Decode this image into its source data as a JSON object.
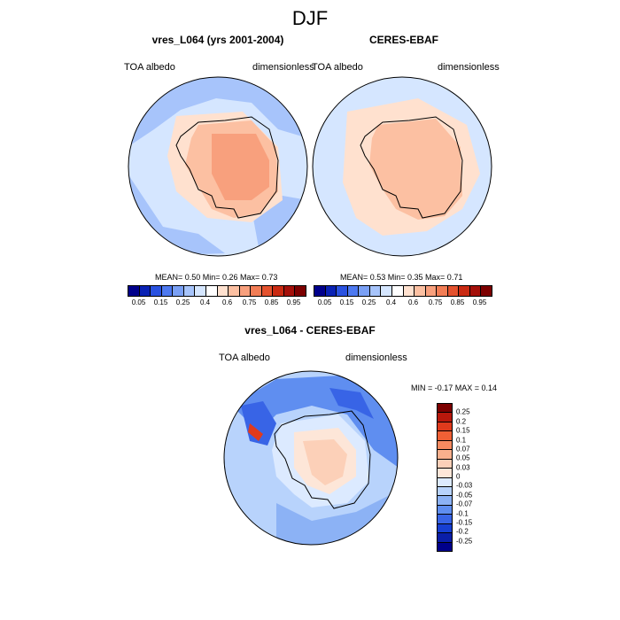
{
  "title": "DJF",
  "panels": [
    {
      "title": "vres_L064 (yrs 2001-2004)",
      "left_label": "TOA albedo",
      "right_label": "dimensionless",
      "stats": "MEAN=   0.50  Min=   0.26  Max=   0.73"
    },
    {
      "title": "CERES-EBAF",
      "left_label": "TOA albedo",
      "right_label": "dimensionless",
      "stats": "MEAN=   0.53  Min=   0.35  Max=   0.71"
    }
  ],
  "diff": {
    "title": "vres_L064 - CERES-EBAF",
    "left_label": "TOA albedo",
    "right_label": "dimensionless",
    "stats": "MIN =  -0.17 MAX =   0.14"
  },
  "colorbar_abs": {
    "labels": [
      "0.05",
      "0.15",
      "0.25",
      "0.4",
      "0.6",
      "0.75",
      "0.85",
      "0.95"
    ],
    "colors": [
      "#00008b",
      "#0a22b4",
      "#2a52e0",
      "#4d79f0",
      "#7aa0f5",
      "#a7c4fb",
      "#d5e6ff",
      "#ffffff",
      "#ffe1cf",
      "#fcc0a2",
      "#f8a07d",
      "#f27d55",
      "#e4522e",
      "#c92a12",
      "#a4100a",
      "#7c0000"
    ]
  },
  "colorbar_diff": {
    "labels": [
      "0.25",
      "0.2",
      "0.15",
      "0.1",
      "0.07",
      "0.05",
      "0.03",
      "0",
      "-0.03",
      "-0.05",
      "-0.07",
      "-0.1",
      "-0.15",
      "-0.2",
      "-0.25"
    ],
    "colors": [
      "#7c0000",
      "#b8180c",
      "#e03a1c",
      "#f06035",
      "#f68a60",
      "#f9b08d",
      "#fcd0b8",
      "#fde6d8",
      "#dceaff",
      "#b8d3fc",
      "#8cb2f5",
      "#5f8ef0",
      "#3864e6",
      "#173fd2",
      "#0a1ea8",
      "#00008b"
    ]
  }
}
